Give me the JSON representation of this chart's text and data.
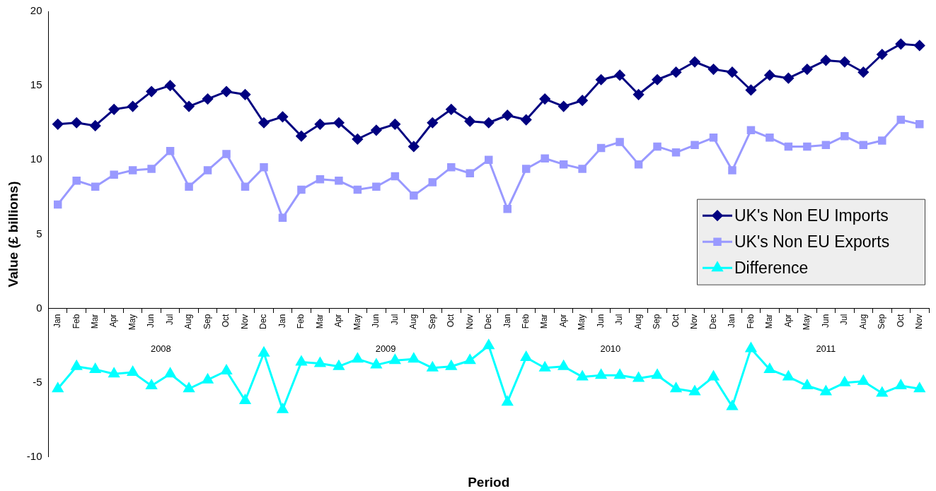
{
  "chart_data": {
    "type": "line",
    "xlabel": "Period",
    "ylabel": "Value (£ billions)",
    "categories": [
      "Jan",
      "Feb",
      "Mar",
      "Apr",
      "May",
      "Jun",
      "Jul",
      "Aug",
      "Sep",
      "Oct",
      "Nov",
      "Dec",
      "Jan",
      "Feb",
      "Mar",
      "Apr",
      "May",
      "Jun",
      "Jul",
      "Aug",
      "Sep",
      "Oct",
      "Nov",
      "Dec",
      "Jan",
      "Feb",
      "Mar",
      "Apr",
      "May",
      "Jun",
      "Jul",
      "Aug",
      "Sep",
      "Oct",
      "Nov",
      "Dec",
      "Jan",
      "Feb",
      "Mar",
      "Apr",
      "May",
      "Jun",
      "Jul",
      "Aug",
      "Sep",
      "Oct",
      "Nov"
    ],
    "annotations": [
      "2008",
      "2009",
      "2010",
      "2011"
    ],
    "ylim": [
      -10,
      20
    ],
    "yticks": [
      -10,
      -5,
      0,
      5,
      10,
      15,
      20
    ],
    "legend": "right",
    "series": [
      {
        "name": "UK's Non EU Imports",
        "color": "#000080",
        "marker": "diamond",
        "values": [
          12.4,
          12.5,
          12.3,
          13.4,
          13.6,
          14.6,
          15.0,
          13.6,
          14.1,
          14.6,
          14.4,
          12.5,
          12.9,
          11.6,
          12.4,
          12.5,
          11.4,
          12.0,
          12.4,
          10.9,
          12.5,
          13.4,
          12.6,
          12.5,
          13.0,
          12.7,
          14.1,
          13.6,
          14.0,
          15.4,
          15.7,
          14.4,
          15.4,
          15.9,
          16.6,
          16.1,
          15.9,
          14.7,
          15.7,
          15.5,
          16.1,
          16.7,
          16.6,
          15.9,
          17.1,
          17.8,
          17.7
        ]
      },
      {
        "name": "UK's Non EU Exports",
        "color": "#9999ff",
        "marker": "square",
        "values": [
          7.0,
          8.6,
          8.2,
          9.0,
          9.3,
          9.4,
          10.6,
          8.2,
          9.3,
          10.4,
          8.2,
          9.5,
          6.1,
          8.0,
          8.7,
          8.6,
          8.0,
          8.2,
          8.9,
          7.6,
          8.5,
          9.5,
          9.1,
          10.0,
          6.7,
          9.4,
          10.1,
          9.7,
          9.4,
          10.8,
          11.2,
          9.7,
          10.9,
          10.5,
          11.0,
          11.5,
          9.3,
          12.0,
          11.5,
          10.9,
          10.9,
          11.0,
          11.6,
          11.0,
          11.3,
          12.7,
          12.4
        ]
      },
      {
        "name": "Difference",
        "color": "#00ffff",
        "marker": "triangle",
        "values": [
          -5.4,
          -3.9,
          -4.1,
          -4.4,
          -4.3,
          -5.2,
          -4.4,
          -5.4,
          -4.8,
          -4.2,
          -6.2,
          -3.0,
          -6.8,
          -3.6,
          -3.7,
          -3.9,
          -3.4,
          -3.8,
          -3.5,
          -3.4,
          -4.0,
          -3.9,
          -3.5,
          -2.5,
          -6.3,
          -3.3,
          -4.0,
          -3.9,
          -4.6,
          -4.5,
          -4.5,
          -4.7,
          -4.5,
          -5.4,
          -5.6,
          -4.6,
          -6.6,
          -2.7,
          -4.1,
          -4.6,
          -5.2,
          -5.6,
          -5.0,
          -4.9,
          -5.7,
          -5.2,
          -5.4
        ]
      }
    ]
  }
}
